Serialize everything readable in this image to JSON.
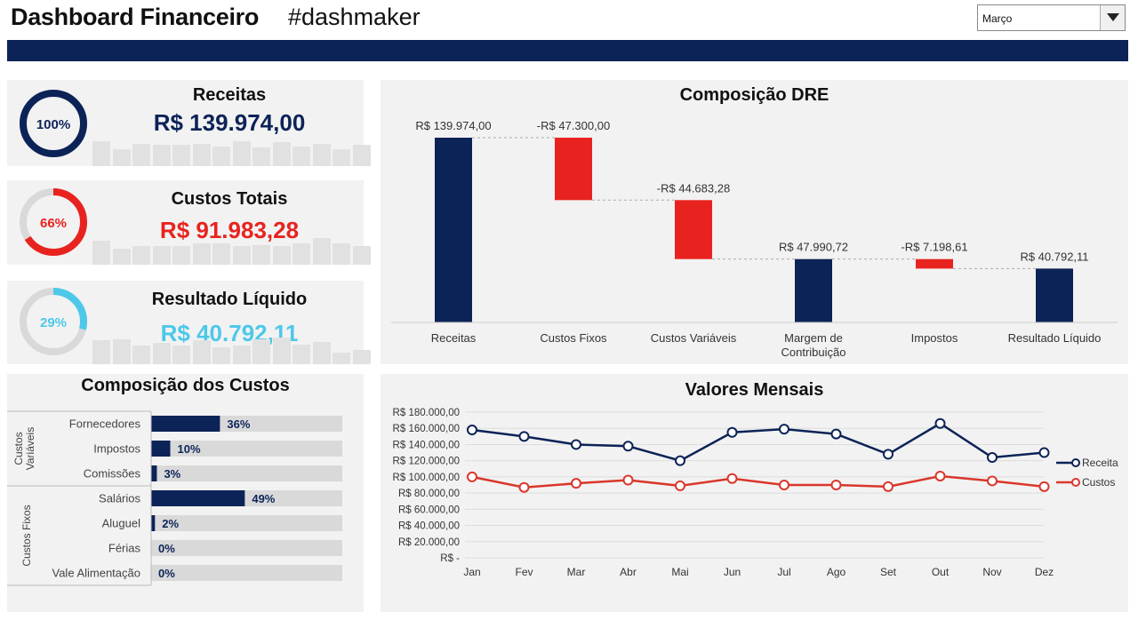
{
  "header": {
    "title": "Dashboard Financeiro",
    "subtitle": "#dashmaker"
  },
  "month_select": {
    "value": "Março"
  },
  "kpis": [
    {
      "title": "Receitas",
      "value": "R$ 139.974,00",
      "pct_label": "100%",
      "pct": 1.0,
      "color": "#0c2357",
      "spark": [
        0.95,
        0.65,
        0.85,
        0.8,
        0.8,
        0.85,
        0.75,
        0.95,
        0.7,
        0.9,
        0.75,
        0.85,
        0.65,
        0.8
      ]
    },
    {
      "title": "Custos Totais",
      "value": "R$ 91.983,28",
      "pct_label": "66%",
      "pct": 0.66,
      "color": "#e8231f",
      "spark": [
        0.9,
        0.6,
        0.7,
        0.7,
        0.7,
        0.8,
        0.8,
        0.7,
        0.75,
        0.7,
        0.8,
        1.0,
        0.8,
        0.7
      ]
    },
    {
      "title": "Resultado Líquido",
      "value": "R$ 40.792,11",
      "pct_label": "29%",
      "pct": 0.29,
      "color": "#4dc8e9",
      "spark": [
        0.9,
        0.95,
        0.7,
        0.8,
        0.7,
        0.9,
        0.65,
        0.7,
        0.95,
        1.0,
        0.75,
        0.85,
        0.45,
        0.55
      ]
    }
  ],
  "costs": {
    "title": "Composição dos Custos",
    "groups": [
      {
        "label": "Custos Variáveis",
        "items": [
          {
            "label": "Fornecedores",
            "value": 0.36,
            "pct_label": "36%"
          },
          {
            "label": "Impostos",
            "value": 0.1,
            "pct_label": "10%"
          },
          {
            "label": "Comissões",
            "value": 0.03,
            "pct_label": "3%"
          }
        ]
      },
      {
        "label": "Custos Fixos",
        "items": [
          {
            "label": "Salários",
            "value": 0.49,
            "pct_label": "49%"
          },
          {
            "label": "Aluguel",
            "value": 0.02,
            "pct_label": "2%"
          },
          {
            "label": "Férias",
            "value": 0.0,
            "pct_label": "0%"
          },
          {
            "label": "Vale Alimentação",
            "value": 0.0,
            "pct_label": "0%"
          }
        ]
      }
    ]
  },
  "colors": {
    "navy": "#0c2357",
    "red": "#e8231f",
    "cyan": "#4dc8e9",
    "panel": "#f2f2f2",
    "track": "#d9d9d9"
  },
  "chart_data": [
    {
      "type": "bar",
      "title": "Composição DRE",
      "categories": [
        "Receitas",
        "Custos Fixos",
        "Custos Variáveis",
        "Margem de Contribuição",
        "Impostos",
        "Resultado Líquido"
      ],
      "values": [
        139974.0,
        -47300.0,
        -44683.28,
        47990.72,
        -7198.61,
        40792.11
      ],
      "labels": [
        "R$ 139.974,00",
        "-R$ 47.300,00",
        "-R$ 44.683,28",
        "R$ 47.990,72",
        "-R$ 7.198,61",
        "R$ 40.792,11"
      ],
      "kinds": [
        "total",
        "delta",
        "delta",
        "total",
        "delta",
        "total"
      ]
    },
    {
      "type": "line",
      "title": "Valores Mensais",
      "x": [
        "Jan",
        "Fev",
        "Mar",
        "Abr",
        "Mai",
        "Jun",
        "Jul",
        "Ago",
        "Set",
        "Out",
        "Nov",
        "Dez"
      ],
      "series": [
        {
          "name": "Receita",
          "color": "#0c2357",
          "values": [
            158000,
            150000,
            140000,
            138000,
            120000,
            155000,
            159000,
            153000,
            128000,
            166000,
            124000,
            130000
          ]
        },
        {
          "name": "Custos",
          "color": "#d9372b",
          "values": [
            100000,
            87000,
            92000,
            96000,
            89000,
            98000,
            90000,
            90000,
            88000,
            101000,
            95000,
            88000
          ]
        }
      ],
      "ylim": [
        0,
        180000
      ],
      "yticks": [
        "R$ -",
        "R$ 20.000,00",
        "R$ 40.000,00",
        "R$ 60.000,00",
        "R$ 80.000,00",
        "R$ 100.000,00",
        "R$ 120.000,00",
        "R$ 140.000,00",
        "R$ 160.000,00",
        "R$ 180.000,00"
      ],
      "legend": "right",
      "grid": true
    }
  ]
}
